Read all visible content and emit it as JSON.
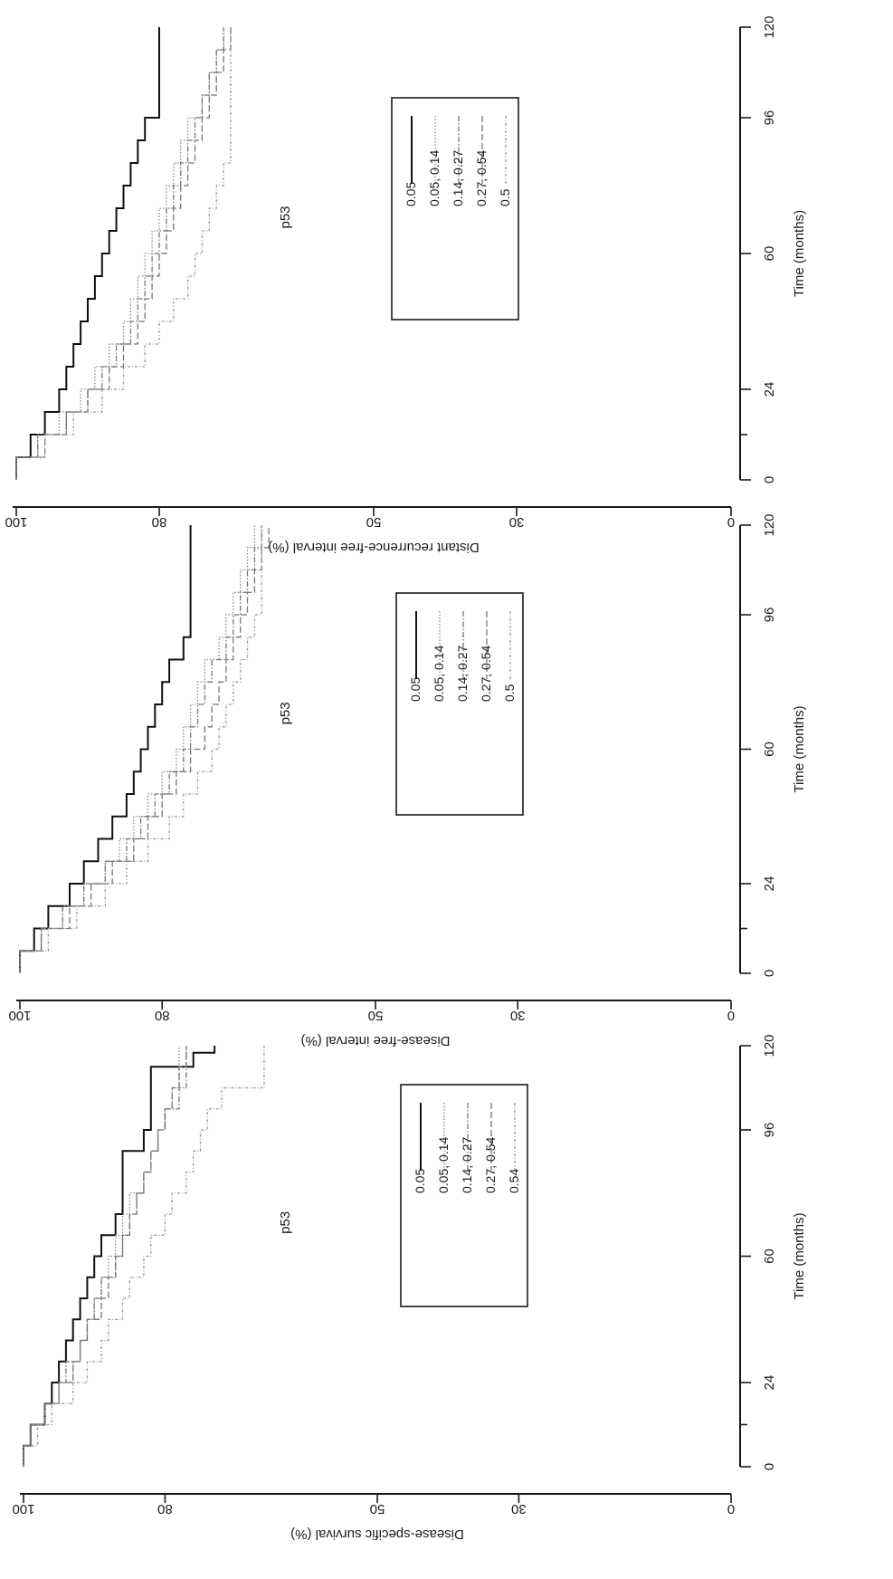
{
  "chart_data": [
    {
      "type": "line",
      "panel": "left",
      "annotation": "p53",
      "xlabel": "Time (months)",
      "ylabel": "Disease-specific survival (%)",
      "xticks": [
        0,
        24,
        60,
        96,
        120
      ],
      "xticklabels": [
        "0",
        "24",
        "60",
        "96",
        "120"
      ],
      "yticks": [
        0,
        30,
        50,
        80,
        100
      ],
      "yticklabels": [
        "0",
        "30",
        "50",
        "80",
        "100"
      ],
      "xlim": [
        0,
        120
      ],
      "ylim": [
        0,
        100
      ],
      "grid": false,
      "legend": "center",
      "series": [
        {
          "name": "0.05",
          "color": "#111111",
          "dash": "",
          "x": [
            0,
            6,
            12,
            18,
            24,
            30,
            36,
            42,
            48,
            54,
            60,
            66,
            72,
            78,
            84,
            90,
            96,
            102,
            108,
            114,
            118,
            120
          ],
          "y": [
            100,
            99,
            97,
            96,
            95,
            94,
            93,
            92,
            91,
            90,
            89,
            87,
            86,
            86,
            86,
            83,
            82,
            82,
            82,
            76,
            73,
            73
          ]
        },
        {
          "name": "0.05, 0.14",
          "color": "#888888",
          "dash": "1.5,2",
          "x": [
            0,
            6,
            12,
            18,
            24,
            30,
            36,
            42,
            48,
            54,
            60,
            66,
            72,
            78,
            84,
            90,
            96,
            102,
            108,
            114,
            120
          ],
          "y": [
            100,
            99,
            97,
            95,
            93,
            92,
            91,
            90,
            89,
            88,
            87,
            86,
            85,
            83,
            82,
            81,
            80,
            79,
            78,
            78,
            78
          ]
        },
        {
          "name": "0.14, 0.27",
          "color": "#777777",
          "dash": "6,2,1.5,2",
          "x": [
            0,
            6,
            12,
            18,
            24,
            30,
            36,
            42,
            48,
            54,
            60,
            66,
            72,
            78,
            84,
            90,
            96,
            102,
            108,
            114,
            120
          ],
          "y": [
            100,
            99,
            97,
            95,
            94,
            92,
            91,
            90,
            89,
            87,
            86,
            85,
            84,
            83,
            82,
            81,
            80,
            78,
            77,
            77,
            77
          ]
        },
        {
          "name": "0.27, 0.54",
          "color": "#777777",
          "dash": "7,3",
          "x": [
            0,
            6,
            12,
            18,
            24,
            30,
            36,
            42,
            48,
            54,
            60,
            66,
            72,
            78,
            84,
            90,
            96,
            102,
            108,
            114,
            120
          ],
          "y": [
            100,
            99,
            97,
            95,
            93,
            92,
            91,
            89,
            88,
            87,
            86,
            85,
            84,
            83,
            82,
            81,
            80,
            79,
            78,
            77,
            77
          ]
        },
        {
          "name": "0.54",
          "color": "#999999",
          "dash": "3,2,1,2",
          "x": [
            0,
            6,
            12,
            18,
            24,
            30,
            36,
            42,
            48,
            54,
            60,
            66,
            72,
            78,
            84,
            90,
            96,
            102,
            108,
            114,
            120
          ],
          "y": [
            100,
            98,
            96,
            93,
            91,
            89,
            88,
            86,
            85,
            83,
            82,
            80,
            79,
            77,
            76,
            75,
            74,
            72,
            66,
            66,
            66
          ]
        }
      ]
    },
    {
      "type": "line",
      "panel": "middle",
      "annotation": "p53",
      "xlabel": "Time (months)",
      "ylabel": "Disease-free interval (%)",
      "xticks": [
        0,
        24,
        60,
        96,
        120
      ],
      "xticklabels": [
        "0",
        "24",
        "60",
        "96",
        "120"
      ],
      "yticks": [
        0,
        30,
        50,
        80,
        100
      ],
      "yticklabels": [
        "0",
        "30",
        "50",
        "80",
        "100"
      ],
      "xlim": [
        0,
        120
      ],
      "ylim": [
        0,
        100
      ],
      "grid": false,
      "legend": "center",
      "series": [
        {
          "name": "0.05",
          "color": "#111111",
          "dash": "",
          "x": [
            0,
            6,
            12,
            18,
            24,
            30,
            36,
            42,
            48,
            54,
            60,
            66,
            72,
            78,
            84,
            90,
            96,
            102,
            108,
            114,
            120
          ],
          "y": [
            100,
            98,
            96,
            93,
            91,
            89,
            87,
            85,
            84,
            83,
            82,
            81,
            80,
            79,
            77,
            76,
            76,
            76,
            76,
            76,
            76
          ]
        },
        {
          "name": "0.05, 0.14",
          "color": "#888888",
          "dash": "1.5,2",
          "x": [
            0,
            6,
            12,
            18,
            24,
            30,
            36,
            42,
            48,
            54,
            60,
            66,
            72,
            78,
            84,
            90,
            96,
            102,
            108,
            114,
            120
          ],
          "y": [
            100,
            97,
            94,
            91,
            88,
            86,
            84,
            82,
            80,
            78,
            77,
            76,
            75,
            74,
            72,
            71,
            70,
            69,
            68,
            67,
            67
          ]
        },
        {
          "name": "0.14, 0.27",
          "color": "#777777",
          "dash": "6,2,1.5,2",
          "x": [
            0,
            6,
            12,
            18,
            24,
            30,
            36,
            42,
            48,
            54,
            60,
            66,
            72,
            78,
            84,
            90,
            96,
            102,
            108,
            114,
            120
          ],
          "y": [
            100,
            97,
            94,
            91,
            88,
            85,
            83,
            81,
            79,
            77,
            76,
            75,
            74,
            73,
            71,
            70,
            69,
            68,
            67,
            66,
            66
          ]
        },
        {
          "name": "0.27, 0.54",
          "color": "#777777",
          "dash": "7,3",
          "x": [
            0,
            6,
            12,
            18,
            24,
            30,
            36,
            42,
            48,
            54,
            60,
            66,
            72,
            78,
            84,
            90,
            96,
            102,
            108,
            114,
            120
          ],
          "y": [
            100,
            97,
            93,
            90,
            87,
            84,
            82,
            80,
            78,
            76,
            74,
            73,
            72,
            71,
            70,
            69,
            68,
            67,
            66,
            65,
            65
          ]
        },
        {
          "name": "0.5",
          "color": "#999999",
          "dash": "3,2,1,2",
          "x": [
            0,
            6,
            12,
            18,
            24,
            30,
            36,
            42,
            48,
            54,
            60,
            66,
            72,
            78,
            84,
            90,
            96,
            102,
            108,
            114,
            120
          ],
          "y": [
            100,
            96,
            92,
            88,
            85,
            82,
            79,
            77,
            75,
            73,
            72,
            71,
            70,
            69,
            68,
            67,
            66,
            66,
            66,
            66,
            66
          ]
        }
      ]
    },
    {
      "type": "line",
      "panel": "right",
      "annotation": "p53",
      "xlabel": "Time (months)",
      "ylabel": "Distant recurrence-free interval (%)",
      "xticks": [
        0,
        24,
        60,
        96,
        120
      ],
      "xticklabels": [
        "0",
        "24",
        "60",
        "96",
        "120"
      ],
      "yticks": [
        0,
        30,
        50,
        80,
        100
      ],
      "yticklabels": [
        "0",
        "30",
        "50",
        "80",
        "100"
      ],
      "xlim": [
        0,
        120
      ],
      "ylim": [
        0,
        100
      ],
      "grid": false,
      "legend": "center",
      "series": [
        {
          "name": "0.05",
          "color": "#111111",
          "dash": "",
          "x": [
            0,
            6,
            12,
            18,
            24,
            30,
            36,
            42,
            48,
            54,
            60,
            66,
            72,
            78,
            84,
            90,
            96,
            102,
            108,
            114,
            120
          ],
          "y": [
            100,
            98,
            96,
            94,
            93,
            92,
            91,
            90,
            89,
            88,
            87,
            86,
            85,
            84,
            83,
            82,
            80,
            80,
            80,
            80,
            80
          ]
        },
        {
          "name": "0.05, 0.14",
          "color": "#888888",
          "dash": "1.5,2",
          "x": [
            0,
            6,
            12,
            18,
            24,
            30,
            36,
            42,
            48,
            54,
            60,
            66,
            72,
            78,
            84,
            90,
            96,
            102,
            108,
            114,
            120
          ],
          "y": [
            100,
            97,
            94,
            91,
            89,
            87,
            85,
            84,
            83,
            82,
            81,
            80,
            79,
            78,
            77,
            76,
            74,
            73,
            72,
            71,
            71
          ]
        },
        {
          "name": "0.14, 0.27",
          "color": "#777777",
          "dash": "6,2,1.5,2",
          "x": [
            0,
            6,
            12,
            18,
            24,
            30,
            36,
            42,
            48,
            54,
            60,
            66,
            72,
            78,
            84,
            90,
            96,
            102,
            108,
            114,
            120
          ],
          "y": [
            100,
            97,
            93,
            90,
            88,
            86,
            84,
            83,
            82,
            81,
            80,
            79,
            78,
            77,
            76,
            75,
            74,
            73,
            72,
            71,
            71
          ]
        },
        {
          "name": "0.27, 0.54",
          "color": "#777777",
          "dash": "7,3",
          "x": [
            0,
            6,
            12,
            18,
            24,
            30,
            36,
            42,
            48,
            54,
            60,
            66,
            72,
            78,
            84,
            90,
            96,
            102,
            108,
            114,
            120
          ],
          "y": [
            100,
            96,
            93,
            90,
            87,
            85,
            83,
            82,
            81,
            80,
            79,
            78,
            77,
            76,
            75,
            74,
            73,
            72,
            71,
            70,
            70
          ]
        },
        {
          "name": "0.5",
          "color": "#999999",
          "dash": "3,2,1,2",
          "x": [
            0,
            6,
            12,
            18,
            24,
            30,
            36,
            42,
            48,
            54,
            60,
            66,
            72,
            78,
            84,
            90,
            96,
            102,
            108,
            114,
            120
          ],
          "y": [
            100,
            96,
            92,
            88,
            85,
            82,
            80,
            78,
            76,
            75,
            74,
            73,
            72,
            71,
            70,
            70,
            70,
            70,
            70,
            70,
            70
          ]
        }
      ]
    }
  ]
}
